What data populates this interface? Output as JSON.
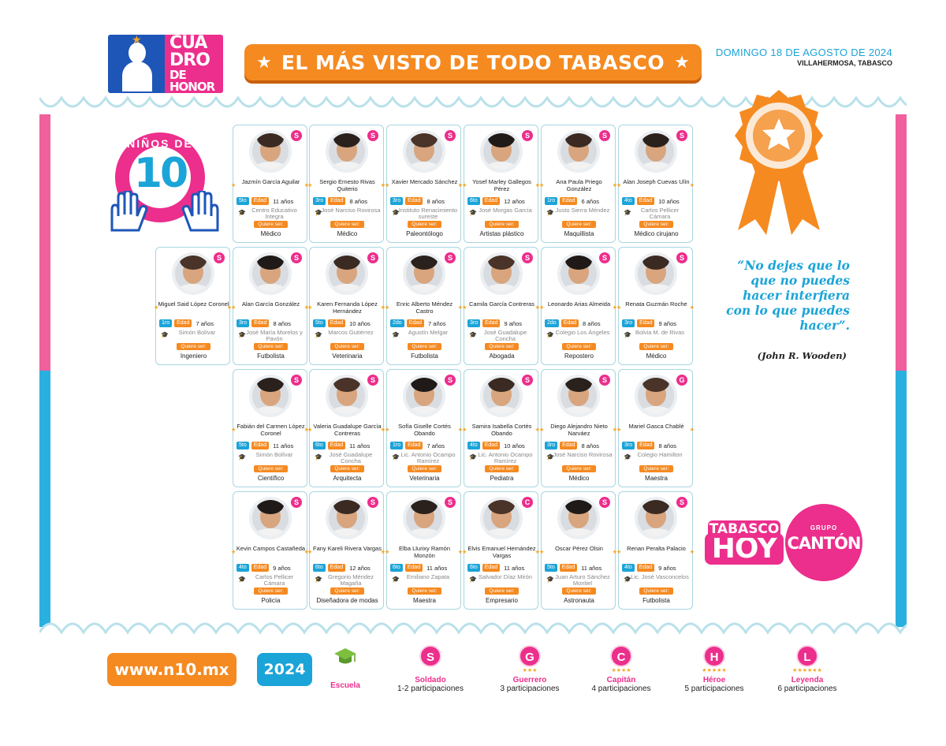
{
  "header": {
    "logo": {
      "line1": "CUA",
      "line2": "DRO",
      "line3": "DE HONOR"
    },
    "banner_title": "EL MÁS VISTO DE TODO TABASCO",
    "date": "DOMINGO 18 DE AGOSTO DE 2024",
    "city": "VILLAHERMOSA, TABASCO"
  },
  "badge": {
    "label": "NIÑOS DE",
    "number": "10"
  },
  "labels": {
    "edad": "Edad",
    "quiere_ser": "Quiere ser:"
  },
  "kids": [
    {
      "name": "Jazmín García Aguilar",
      "grade": "5to",
      "age": "11 años",
      "school": "Centro Educativo Integra",
      "wants": "Médico",
      "level": "S"
    },
    {
      "name": "Sergio Ernesto Rivas Quiterio",
      "grade": "3ro",
      "age": "8 años",
      "school": "José Narciso Rovirosa",
      "wants": "Médico",
      "level": "S"
    },
    {
      "name": "Xavier Mercado Sánchez",
      "grade": "3ro",
      "age": "8 años",
      "school": "Instituto Renacimiento sureste",
      "wants": "Paleontólogo",
      "level": "S"
    },
    {
      "name": "Yosef Marley Gallegos Pérez",
      "grade": "6to",
      "age": "12 años",
      "school": "José Morgas García",
      "wants": "Artistas plástico",
      "level": "S"
    },
    {
      "name": "Ana Paula Priego González",
      "grade": "1ro",
      "age": "6 años",
      "school": "Justo Sierra Méndez",
      "wants": "Maquillista",
      "level": "S"
    },
    {
      "name": "Alan Joseph Cuevas Ulín",
      "grade": "4to",
      "age": "10 años",
      "school": "Carlos Pellicer Cámara",
      "wants": "Médico cirujano",
      "level": "S"
    },
    {
      "name": "Miguel Said López Coronel",
      "grade": "1ro",
      "age": "7 años",
      "school": "Simón Bolívar",
      "wants": "Ingeniero",
      "level": "S"
    },
    {
      "name": "Alan García González",
      "grade": "3ro",
      "age": "8 años",
      "school": "José María Morelos y Pavón",
      "wants": "Futbolista",
      "level": "S"
    },
    {
      "name": "Karen Fernanda López Hernández",
      "grade": "5to",
      "age": "10 años",
      "school": "Marcos Gutiérrez",
      "wants": "Veterinaria",
      "level": "S"
    },
    {
      "name": "Enric Alberto Méndez Castro",
      "grade": "2do",
      "age": "7 años",
      "school": "Agustín Melgar",
      "wants": "Futbolista",
      "level": "S"
    },
    {
      "name": "Camila García Contreras",
      "grade": "3ro",
      "age": "9 años",
      "school": "José Guadalupe Concha",
      "wants": "Abogada",
      "level": "S"
    },
    {
      "name": "Leonardo Arias Almeida",
      "grade": "2do",
      "age": "8 años",
      "school": "Colegio Los Ángeles",
      "wants": "Repostero",
      "level": "S"
    },
    {
      "name": "Renata Guzmán Roche",
      "grade": "3ro",
      "age": "9 años",
      "school": "Bolvia M. de Rivas",
      "wants": "Médico",
      "level": "S"
    },
    {
      "name": "Fabián del Carmen López Coronel",
      "grade": "5to",
      "age": "11 años",
      "school": "Simón Bolívar",
      "wants": "Científico",
      "level": "S"
    },
    {
      "name": "Valeria Guadalupe García Contreras",
      "grade": "6to",
      "age": "11 años",
      "school": "José Guadalupe Concha",
      "wants": "Arquitecta",
      "level": "S"
    },
    {
      "name": "Sofía Giselle Cortés Obando",
      "grade": "1ro",
      "age": "7 años",
      "school": "Lic. Antonio Ocampo Ramírez",
      "wants": "Veterinaria",
      "level": "S"
    },
    {
      "name": "Samira Isabella Cortés Obando",
      "grade": "4to",
      "age": "10 años",
      "school": "Lic. Antonio Ocampo Ramírez",
      "wants": "Pediatra",
      "level": "S"
    },
    {
      "name": "Diego Alejandro Nieto Narváez",
      "grade": "3ro",
      "age": "8 años",
      "school": "José Narciso Rovirosa",
      "wants": "Médico",
      "level": "S"
    },
    {
      "name": "Mariel Gasca Chablé",
      "grade": "3ro",
      "age": "8 años",
      "school": "Colegio Hamilton",
      "wants": "Maestra",
      "level": "G"
    },
    {
      "name": "Kevin Campos Castañeda",
      "grade": "4to",
      "age": "9 años",
      "school": "Carlos Pellicer Cámara",
      "wants": "Policía",
      "level": "S"
    },
    {
      "name": "Fany Kareli Rivera Vargas",
      "grade": "6to",
      "age": "12 años",
      "school": "Gregorio Méndez Magaña",
      "wants": "Diseñadora de modas",
      "level": "S"
    },
    {
      "name": "Elba Llurixy Ramón Monzón",
      "grade": "6to",
      "age": "11 años",
      "school": "Emiliano Zapata",
      "wants": "Maestra",
      "level": "S"
    },
    {
      "name": "Elvis Emanuel Hernández Vargas",
      "grade": "6to",
      "age": "11 años",
      "school": "Salvador Díaz Mirón",
      "wants": "Empresario",
      "level": "C"
    },
    {
      "name": "Oscar Pérez Olsin",
      "grade": "5to",
      "age": "11 años",
      "school": "Juan Arturo Sánchez Montiel",
      "wants": "Astronauta",
      "level": "S"
    },
    {
      "name": "Renan Peralta Palacio",
      "grade": "4to",
      "age": "9 años",
      "school": "Lic. José Vasconcelos",
      "wants": "Futbolista",
      "level": "S"
    }
  ],
  "quote": {
    "text": "“No dejes que lo que no puedes hacer interfiera con lo que puedes hacer”.",
    "author": "(John R. Wooden)"
  },
  "sponsors": {
    "th_line1": "TABASCO",
    "th_line2": "HOY",
    "gc_line1": "GRUPO",
    "gc_line2": "CANTÓN"
  },
  "footer": {
    "url": "www.n10.mx",
    "year": "2024",
    "legend": [
      {
        "letter": "",
        "name": "Escuela",
        "desc": "",
        "stars": 0
      },
      {
        "letter": "S",
        "name": "Soldado",
        "desc": "1-2 participaciones",
        "stars": 0
      },
      {
        "letter": "G",
        "name": "Guerrero",
        "desc": "3 participaciones",
        "stars": 3
      },
      {
        "letter": "C",
        "name": "Capitán",
        "desc": "4 participaciones",
        "stars": 4
      },
      {
        "letter": "H",
        "name": "Héroe",
        "desc": "5 participaciones",
        "stars": 5
      },
      {
        "letter": "L",
        "name": "Leyenda",
        "desc": "6 participaciones",
        "stars": 6
      }
    ]
  },
  "colors": {
    "pink": "#ec2e8c",
    "blue": "#1ba4d8",
    "orange": "#f58a21",
    "green": "#7cbf3f",
    "star": "#f5a623"
  }
}
